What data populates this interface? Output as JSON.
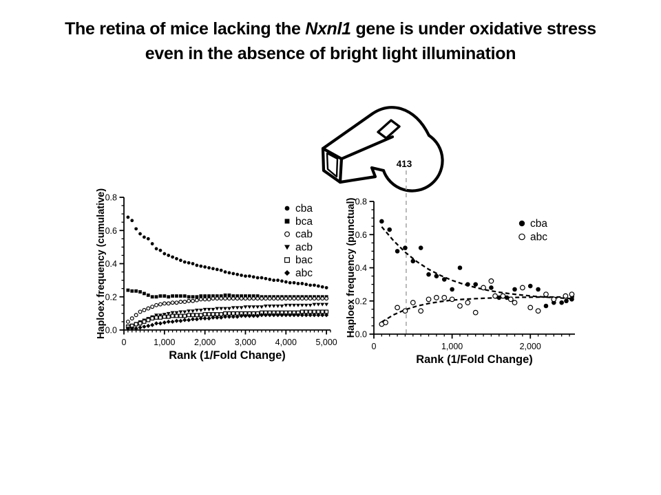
{
  "slide": {
    "title": {
      "line1_prefix": "The retina of mice lacking the ",
      "line1_italic": "Nxnl1",
      "line1_suffix": " gene is under oxidative stress",
      "line2": "even in the absence of bright light illumination"
    },
    "background_color": "#ffffff",
    "text_color": "#000000"
  },
  "whistle": {
    "label": "413",
    "stroke_color": "#000000"
  },
  "reference_line": {
    "x_value": 413,
    "color": "#a8a8a8",
    "style": "dashed"
  },
  "chart_data": [
    {
      "id": "cumulative",
      "type": "scatter",
      "xlabel": "Rank (1/Fold Change)",
      "ylabel": "Haploex frequency (cumulative)",
      "xlim": [
        0,
        5100
      ],
      "ylim": [
        0,
        0.8
      ],
      "xticks": [
        0,
        1000,
        2000,
        3000,
        4000,
        5000
      ],
      "xtick_labels": [
        "0",
        "1,000",
        "2,000",
        "3,000",
        "4,000",
        "5,000"
      ],
      "yticks": [
        0,
        0.2,
        0.4,
        0.6,
        0.8
      ],
      "ytick_labels": [
        "0.0",
        "0.2",
        "0.4",
        "0.6",
        "0.8"
      ],
      "x_minor_step": 100,
      "y_minor_step": 0.05,
      "grid": false,
      "legend_position": "inside-top-right",
      "x_start": 100,
      "x_step": 100,
      "series": [
        {
          "name": "cba",
          "marker": "circle-filled",
          "values": [
            0.68,
            0.66,
            0.61,
            0.58,
            0.56,
            0.55,
            0.52,
            0.49,
            0.48,
            0.46,
            0.45,
            0.44,
            0.43,
            0.42,
            0.41,
            0.405,
            0.4,
            0.39,
            0.385,
            0.38,
            0.375,
            0.37,
            0.365,
            0.36,
            0.35,
            0.345,
            0.34,
            0.335,
            0.33,
            0.325,
            0.325,
            0.32,
            0.315,
            0.315,
            0.31,
            0.305,
            0.3,
            0.3,
            0.295,
            0.29,
            0.285,
            0.285,
            0.28,
            0.28,
            0.275,
            0.27,
            0.27,
            0.265,
            0.26,
            0.255
          ]
        },
        {
          "name": "bca",
          "marker": "square-filled",
          "values": [
            0.24,
            0.235,
            0.235,
            0.23,
            0.22,
            0.21,
            0.2,
            0.2,
            0.205,
            0.205,
            0.2,
            0.205,
            0.205,
            0.205,
            0.205,
            0.2,
            0.2,
            0.2,
            0.205,
            0.205,
            0.205,
            0.205,
            0.205,
            0.205,
            0.21,
            0.21,
            0.205,
            0.205,
            0.205,
            0.205,
            0.205,
            0.205,
            0.205,
            0.2,
            0.2,
            0.2,
            0.2,
            0.2,
            0.2,
            0.2,
            0.2,
            0.2,
            0.2,
            0.2,
            0.2,
            0.2,
            0.2,
            0.2,
            0.2,
            0.2
          ]
        },
        {
          "name": "cab",
          "marker": "circle-open",
          "values": [
            0.05,
            0.07,
            0.09,
            0.11,
            0.12,
            0.13,
            0.14,
            0.15,
            0.155,
            0.16,
            0.16,
            0.165,
            0.165,
            0.17,
            0.17,
            0.175,
            0.175,
            0.18,
            0.185,
            0.185,
            0.185,
            0.19,
            0.19,
            0.19,
            0.19,
            0.19,
            0.19,
            0.19,
            0.19,
            0.19,
            0.19,
            0.19,
            0.19,
            0.19,
            0.19,
            0.19,
            0.19,
            0.19,
            0.19,
            0.19,
            0.19,
            0.19,
            0.19,
            0.19,
            0.19,
            0.19,
            0.19,
            0.19,
            0.19,
            0.19
          ]
        },
        {
          "name": "acb",
          "marker": "triangle-down-filled",
          "values": [
            0.025,
            0.03,
            0.04,
            0.05,
            0.06,
            0.07,
            0.08,
            0.09,
            0.09,
            0.095,
            0.1,
            0.105,
            0.105,
            0.11,
            0.11,
            0.115,
            0.115,
            0.12,
            0.12,
            0.125,
            0.125,
            0.125,
            0.13,
            0.13,
            0.13,
            0.13,
            0.135,
            0.135,
            0.135,
            0.14,
            0.14,
            0.14,
            0.14,
            0.14,
            0.145,
            0.145,
            0.145,
            0.145,
            0.145,
            0.15,
            0.15,
            0.15,
            0.15,
            0.15,
            0.15,
            0.15,
            0.155,
            0.155,
            0.155,
            0.155
          ]
        },
        {
          "name": "bac",
          "marker": "square-open",
          "values": [
            0.02,
            0.025,
            0.035,
            0.04,
            0.05,
            0.06,
            0.07,
            0.075,
            0.075,
            0.08,
            0.08,
            0.085,
            0.085,
            0.085,
            0.085,
            0.09,
            0.09,
            0.09,
            0.09,
            0.095,
            0.095,
            0.095,
            0.095,
            0.095,
            0.1,
            0.1,
            0.1,
            0.1,
            0.1,
            0.1,
            0.1,
            0.1,
            0.1,
            0.105,
            0.105,
            0.105,
            0.105,
            0.105,
            0.105,
            0.105,
            0.105,
            0.105,
            0.105,
            0.11,
            0.11,
            0.11,
            0.11,
            0.11,
            0.11,
            0.11
          ]
        },
        {
          "name": "abc",
          "marker": "diamond-filled",
          "values": [
            0.01,
            0.01,
            0.01,
            0.015,
            0.02,
            0.025,
            0.03,
            0.04,
            0.04,
            0.045,
            0.05,
            0.05,
            0.055,
            0.055,
            0.06,
            0.06,
            0.065,
            0.065,
            0.07,
            0.07,
            0.07,
            0.075,
            0.075,
            0.075,
            0.08,
            0.08,
            0.08,
            0.08,
            0.085,
            0.085,
            0.085,
            0.085,
            0.085,
            0.09,
            0.09,
            0.09,
            0.09,
            0.09,
            0.09,
            0.09,
            0.09,
            0.09,
            0.09,
            0.09,
            0.09,
            0.09,
            0.09,
            0.09,
            0.09,
            0.09
          ]
        }
      ]
    },
    {
      "id": "punctual",
      "type": "scatter",
      "xlabel": "Rank (1/Fold Change)",
      "ylabel": "Haploex frequency (punctual)",
      "xlim": [
        0,
        2570
      ],
      "ylim": [
        0,
        0.8
      ],
      "xticks": [
        0,
        1000,
        2000
      ],
      "xtick_labels": [
        "0",
        "1,000",
        "2,000"
      ],
      "yticks": [
        0,
        0.2,
        0.4,
        0.6,
        0.8
      ],
      "ytick_labels": [
        "0.0",
        "0.2",
        "0.4",
        "0.6",
        "0.8"
      ],
      "x_minor_step": 100,
      "y_minor_step": 0.05,
      "grid": false,
      "legend_position": "inside-top-right",
      "reference_line_x": 413,
      "series": [
        {
          "name": "cba",
          "marker": "circle-filled",
          "points": [
            [
              100,
              0.68
            ],
            [
              200,
              0.63
            ],
            [
              300,
              0.5
            ],
            [
              400,
              0.52
            ],
            [
              500,
              0.44
            ],
            [
              600,
              0.52
            ],
            [
              700,
              0.36
            ],
            [
              800,
              0.35
            ],
            [
              900,
              0.33
            ],
            [
              1000,
              0.27
            ],
            [
              1100,
              0.4
            ],
            [
              1200,
              0.3
            ],
            [
              1300,
              0.3
            ],
            [
              1400,
              0.28
            ],
            [
              1500,
              0.28
            ],
            [
              1600,
              0.22
            ],
            [
              1700,
              0.22
            ],
            [
              1800,
              0.27
            ],
            [
              1900,
              0.28
            ],
            [
              2000,
              0.29
            ],
            [
              2100,
              0.27
            ],
            [
              2200,
              0.17
            ],
            [
              2300,
              0.19
            ],
            [
              2400,
              0.19
            ],
            [
              2460,
              0.2
            ],
            [
              2530,
              0.21
            ]
          ],
          "trend": [
            [
              100,
              0.647
            ],
            [
              250,
              0.564
            ],
            [
              400,
              0.494
            ],
            [
              550,
              0.437
            ],
            [
              700,
              0.391
            ],
            [
              850,
              0.354
            ],
            [
              1000,
              0.324
            ],
            [
              1150,
              0.3
            ],
            [
              1300,
              0.281
            ],
            [
              1450,
              0.265
            ],
            [
              1600,
              0.253
            ],
            [
              1750,
              0.243
            ],
            [
              1900,
              0.235
            ],
            [
              2050,
              0.228
            ],
            [
              2200,
              0.223
            ],
            [
              2350,
              0.219
            ],
            [
              2500,
              0.215
            ],
            [
              2560,
              0.214
            ]
          ]
        },
        {
          "name": "abc",
          "marker": "circle-open",
          "points": [
            [
              100,
              0.06
            ],
            [
              150,
              0.07
            ],
            [
              300,
              0.16
            ],
            [
              400,
              0.14
            ],
            [
              500,
              0.19
            ],
            [
              600,
              0.14
            ],
            [
              700,
              0.21
            ],
            [
              800,
              0.22
            ],
            [
              900,
              0.22
            ],
            [
              1000,
              0.21
            ],
            [
              1100,
              0.17
            ],
            [
              1200,
              0.19
            ],
            [
              1300,
              0.13
            ],
            [
              1400,
              0.28
            ],
            [
              1500,
              0.32
            ],
            [
              1550,
              0.23
            ],
            [
              1650,
              0.23
            ],
            [
              1750,
              0.21
            ],
            [
              1800,
              0.19
            ],
            [
              1900,
              0.28
            ],
            [
              2000,
              0.16
            ],
            [
              2100,
              0.14
            ],
            [
              2200,
              0.24
            ],
            [
              2300,
              0.21
            ],
            [
              2450,
              0.23
            ],
            [
              2530,
              0.24
            ]
          ],
          "trend": [
            [
              100,
              0.073
            ],
            [
              250,
              0.116
            ],
            [
              400,
              0.147
            ],
            [
              550,
              0.169
            ],
            [
              700,
              0.185
            ],
            [
              850,
              0.196
            ],
            [
              1000,
              0.205
            ],
            [
              1150,
              0.21
            ],
            [
              1300,
              0.214
            ],
            [
              1450,
              0.217
            ],
            [
              1600,
              0.219
            ],
            [
              1750,
              0.221
            ],
            [
              1900,
              0.222
            ],
            [
              2050,
              0.223
            ],
            [
              2200,
              0.224
            ],
            [
              2350,
              0.224
            ],
            [
              2500,
              0.224
            ],
            [
              2560,
              0.225
            ]
          ]
        }
      ]
    }
  ]
}
